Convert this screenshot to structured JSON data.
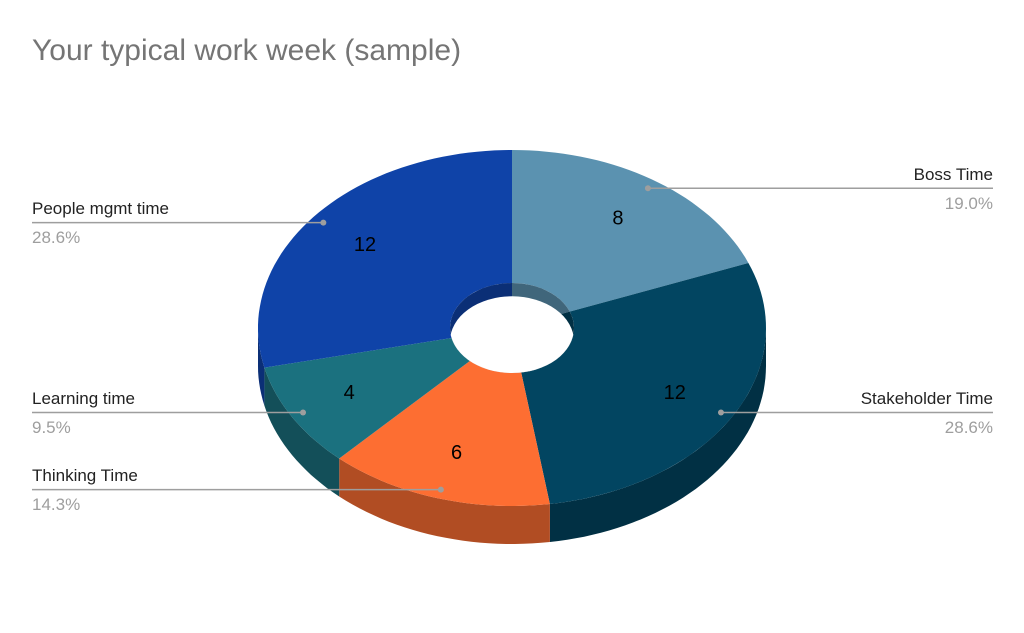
{
  "chart_data": {
    "type": "donut3d",
    "title": "Your typical work week (sample)",
    "categories": [
      "Boss Time",
      "Stakeholder Time",
      "Thinking Time",
      "Learning time",
      "People mgmt time"
    ],
    "values": [
      8,
      12,
      6,
      4,
      12
    ],
    "percent_labels": [
      "19.0%",
      "28.6%",
      "14.3%",
      "9.5%",
      "28.6%"
    ],
    "colors": [
      "#5b92b0",
      "#024561",
      "#fd6e32",
      "#1b717f",
      "#0f43a8"
    ]
  }
}
